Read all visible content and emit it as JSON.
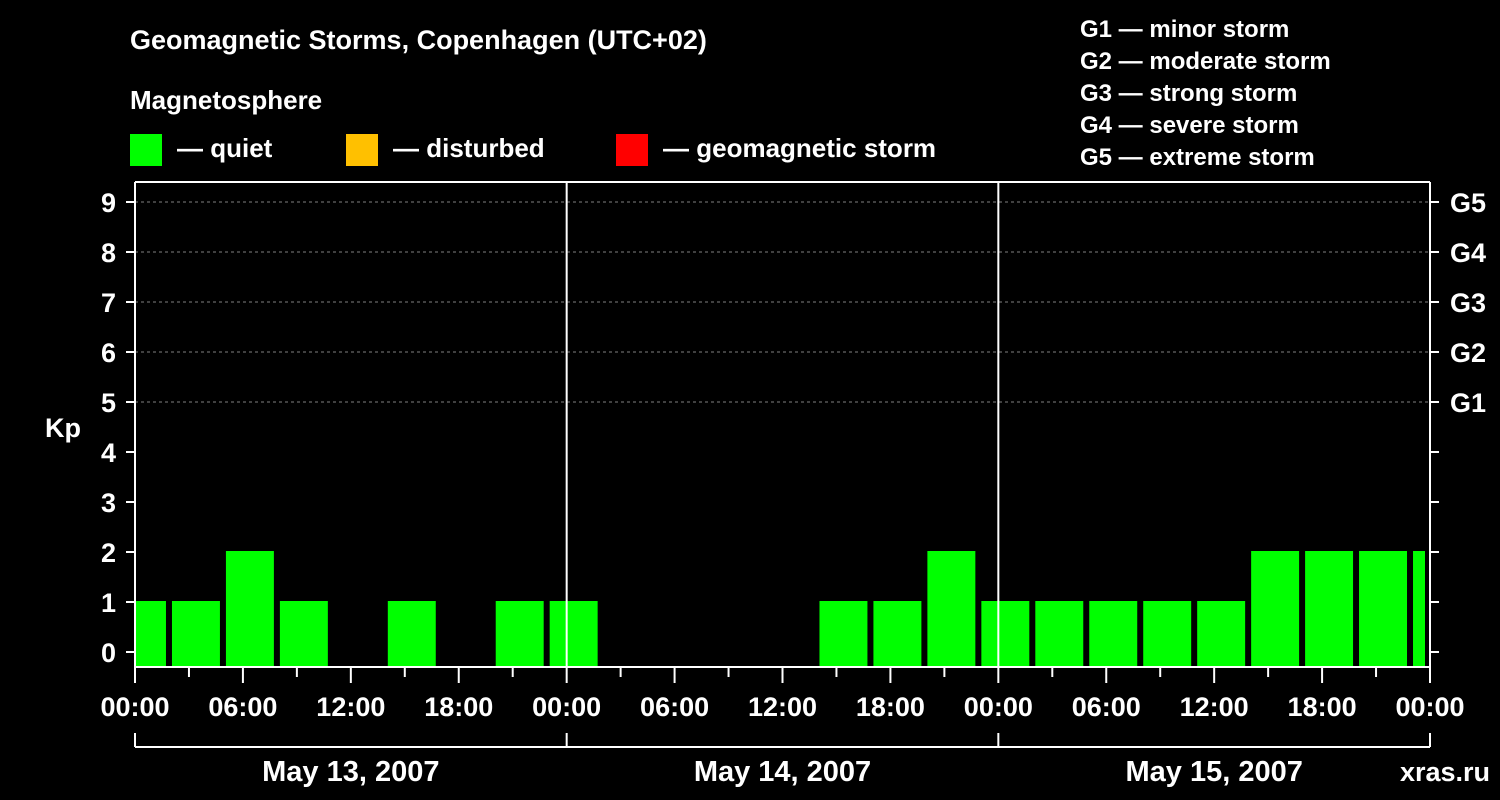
{
  "colors": {
    "background": "#000000",
    "quiet": "#00ff00",
    "disturbed": "#ffc000",
    "storm": "#ff0000",
    "axis": "#ffffff",
    "grid": "#808080",
    "watermark": "#8c8c8c"
  },
  "header": {
    "title": "Geomagnetic Storms, Copenhagen (UTC+02)",
    "subtitle": "Magnetosphere",
    "legend": [
      {
        "key": "quiet",
        "label": "— quiet"
      },
      {
        "key": "disturbed",
        "label": "— disturbed"
      },
      {
        "key": "storm",
        "label": "— geomagnetic storm"
      }
    ],
    "storm_scale": [
      "G1 — minor storm",
      "G2 — moderate storm",
      "G3 — strong storm",
      "G4 — severe storm",
      "G5 — extreme storm"
    ]
  },
  "watermark": "xras.ru",
  "chart_data": {
    "type": "bar",
    "title": "Geomagnetic Storms, Copenhagen (UTC+02)",
    "ylabel": "Kp",
    "xlabel": "",
    "ylim": [
      0,
      9
    ],
    "y_ticks": [
      "0",
      "1",
      "2",
      "3",
      "4",
      "5",
      "6",
      "7",
      "8",
      "9"
    ],
    "g_levels": [
      {
        "label": "G1",
        "kp": 5
      },
      {
        "label": "G2",
        "kp": 6
      },
      {
        "label": "G3",
        "kp": 7
      },
      {
        "label": "G4",
        "kp": 8
      },
      {
        "label": "G5",
        "kp": 9
      }
    ],
    "grid_kp": [
      5,
      6,
      7,
      8,
      9
    ],
    "x_hours_total": 72,
    "x_tick_labels": [
      "00:00",
      "06:00",
      "12:00",
      "18:00",
      "00:00",
      "06:00",
      "12:00",
      "18:00",
      "00:00",
      "06:00",
      "12:00",
      "18:00",
      "00:00"
    ],
    "x_tick_hours": [
      0,
      6,
      12,
      18,
      24,
      30,
      36,
      42,
      48,
      54,
      60,
      66,
      72
    ],
    "dates": [
      "May 13, 2007",
      "May 14, 2007",
      "May 15, 2007"
    ],
    "bars": [
      {
        "start_hour": 0,
        "end_hour": 2,
        "kp": 1,
        "level": "quiet"
      },
      {
        "start_hour": 2,
        "end_hour": 5,
        "kp": 1,
        "level": "quiet"
      },
      {
        "start_hour": 5,
        "end_hour": 8,
        "kp": 2,
        "level": "quiet"
      },
      {
        "start_hour": 8,
        "end_hour": 11,
        "kp": 1,
        "level": "quiet"
      },
      {
        "start_hour": 14,
        "end_hour": 17,
        "kp": 1,
        "level": "quiet"
      },
      {
        "start_hour": 20,
        "end_hour": 23,
        "kp": 1,
        "level": "quiet"
      },
      {
        "start_hour": 23,
        "end_hour": 26,
        "kp": 1,
        "level": "quiet"
      },
      {
        "start_hour": 38,
        "end_hour": 41,
        "kp": 1,
        "level": "quiet"
      },
      {
        "start_hour": 41,
        "end_hour": 44,
        "kp": 1,
        "level": "quiet"
      },
      {
        "start_hour": 44,
        "end_hour": 47,
        "kp": 2,
        "level": "quiet"
      },
      {
        "start_hour": 47,
        "end_hour": 50,
        "kp": 1,
        "level": "quiet"
      },
      {
        "start_hour": 50,
        "end_hour": 53,
        "kp": 1,
        "level": "quiet"
      },
      {
        "start_hour": 53,
        "end_hour": 56,
        "kp": 1,
        "level": "quiet"
      },
      {
        "start_hour": 56,
        "end_hour": 59,
        "kp": 1,
        "level": "quiet"
      },
      {
        "start_hour": 59,
        "end_hour": 62,
        "kp": 1,
        "level": "quiet"
      },
      {
        "start_hour": 62,
        "end_hour": 65,
        "kp": 2,
        "level": "quiet"
      },
      {
        "start_hour": 65,
        "end_hour": 68,
        "kp": 2,
        "level": "quiet"
      },
      {
        "start_hour": 68,
        "end_hour": 71,
        "kp": 2,
        "level": "quiet"
      },
      {
        "start_hour": 71,
        "end_hour": 72,
        "kp": 2,
        "level": "quiet"
      }
    ]
  }
}
